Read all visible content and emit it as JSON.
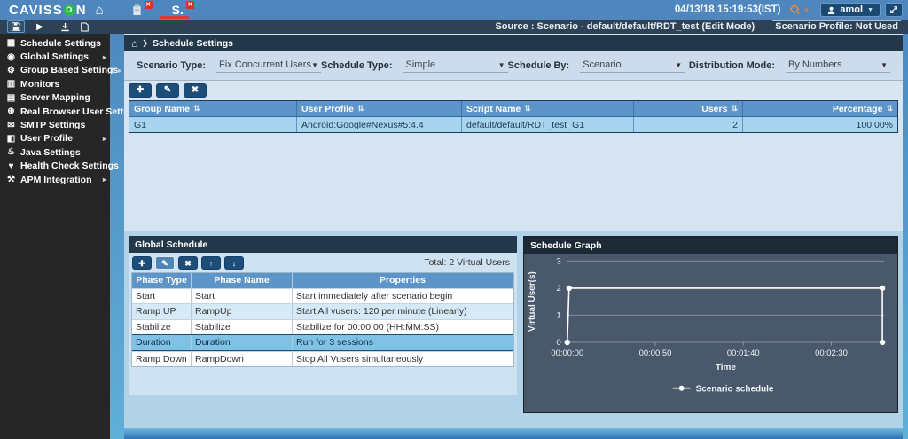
{
  "topbar": {
    "logo_prefix": "CAVISS",
    "logo_o": "O",
    "logo_suffix": "N",
    "tab2_label": "S.",
    "datetime": "04/13/18 15:19:53(IST)",
    "user": "amol"
  },
  "statusbar": {
    "source": "Source : Scenario - default/default/RDT_test (Edit Mode)",
    "profile": "Scenario Profile: Not Used"
  },
  "sidebar": {
    "items": [
      {
        "label": "Schedule Settings",
        "icon": "calendar-icon",
        "has_submenu": false
      },
      {
        "label": "Global Settings",
        "icon": "pin-icon",
        "has_submenu": true
      },
      {
        "label": "Group Based Settings",
        "icon": "gear-icon",
        "has_submenu": true
      },
      {
        "label": "Monitors",
        "icon": "monitor-icon",
        "has_submenu": false
      },
      {
        "label": "Server Mapping",
        "icon": "server-icon",
        "has_submenu": false
      },
      {
        "label": "Real Browser User Settings",
        "icon": "globe-icon",
        "has_submenu": false
      },
      {
        "label": "SMTP Settings",
        "icon": "envelope-icon",
        "has_submenu": false
      },
      {
        "label": "User Profile",
        "icon": "folder-icon",
        "has_submenu": true
      },
      {
        "label": "Java Settings",
        "icon": "coffee-icon",
        "has_submenu": false
      },
      {
        "label": "Health Check Settings",
        "icon": "health-icon",
        "has_submenu": false
      },
      {
        "label": "APM Integration",
        "icon": "tools-icon",
        "has_submenu": true
      }
    ]
  },
  "breadcrumb": {
    "title": "Schedule Settings"
  },
  "filters": [
    {
      "label": "Scenario Type:",
      "value": "Fix Concurrent Users"
    },
    {
      "label": "Schedule Type:",
      "value": "Simple"
    },
    {
      "label": "Schedule By:",
      "value": "Scenario"
    },
    {
      "label": "Distribution Mode:",
      "value": "By Numbers"
    }
  ],
  "group_table": {
    "headers": [
      "Group Name",
      "User Profile",
      "Script Name",
      "Users",
      "Percentage"
    ],
    "rows": [
      [
        "G1",
        "Android:Google#Nexus#5:4.4",
        "default/default/RDT_test_G1",
        "2",
        "100.00%"
      ]
    ]
  },
  "global_schedule": {
    "title": "Global Schedule",
    "total": "Total: 2 Virtual Users",
    "headers": [
      "Phase Type",
      "Phase Name",
      "Properties"
    ],
    "rows": [
      [
        "Start",
        "Start",
        "Start immediately after scenario begin"
      ],
      [
        "Ramp UP",
        "RampUp",
        "Start All vusers: 120 per minute (Linearly)"
      ],
      [
        "Stabilize",
        "Stabilize",
        "Stabilize for 00:00:00 (HH:MM:SS)"
      ],
      [
        "Duration",
        "Duration",
        "Run for 3 sessions"
      ],
      [
        "Ramp Down",
        "RampDown",
        "Stop All Vusers simultaneously"
      ]
    ],
    "selected_row": 3
  },
  "chart_data": {
    "type": "line",
    "title": "Schedule Graph",
    "xlabel": "Time",
    "ylabel": "Virtual User(s)",
    "x_range_sec": [
      0,
      180
    ],
    "y_range": [
      0,
      3
    ],
    "grid": true,
    "legend_position": "bottom",
    "y_ticks": [
      0,
      1,
      2,
      3
    ],
    "x_ticks": [
      {
        "sec": 0,
        "label": "00:00:00"
      },
      {
        "sec": 50,
        "label": "00:00:50"
      },
      {
        "sec": 100,
        "label": "00:01:40"
      },
      {
        "sec": 150,
        "label": "00:02:30"
      }
    ],
    "series": [
      {
        "name": "Scenario schedule",
        "points_sec_users": [
          [
            0,
            0
          ],
          [
            1,
            2
          ],
          [
            179,
            2
          ],
          [
            179,
            0
          ]
        ]
      }
    ]
  },
  "colors": {
    "topbar_blue": "#4e86bd",
    "header_navy": "#24384b",
    "table_header_blue": "#5d95c9",
    "selected_row_blue": "#7fc2e6",
    "active_tab_red": "#d93a35",
    "theme_orange": "#e08a4e",
    "graph_bg": "#49586b"
  }
}
